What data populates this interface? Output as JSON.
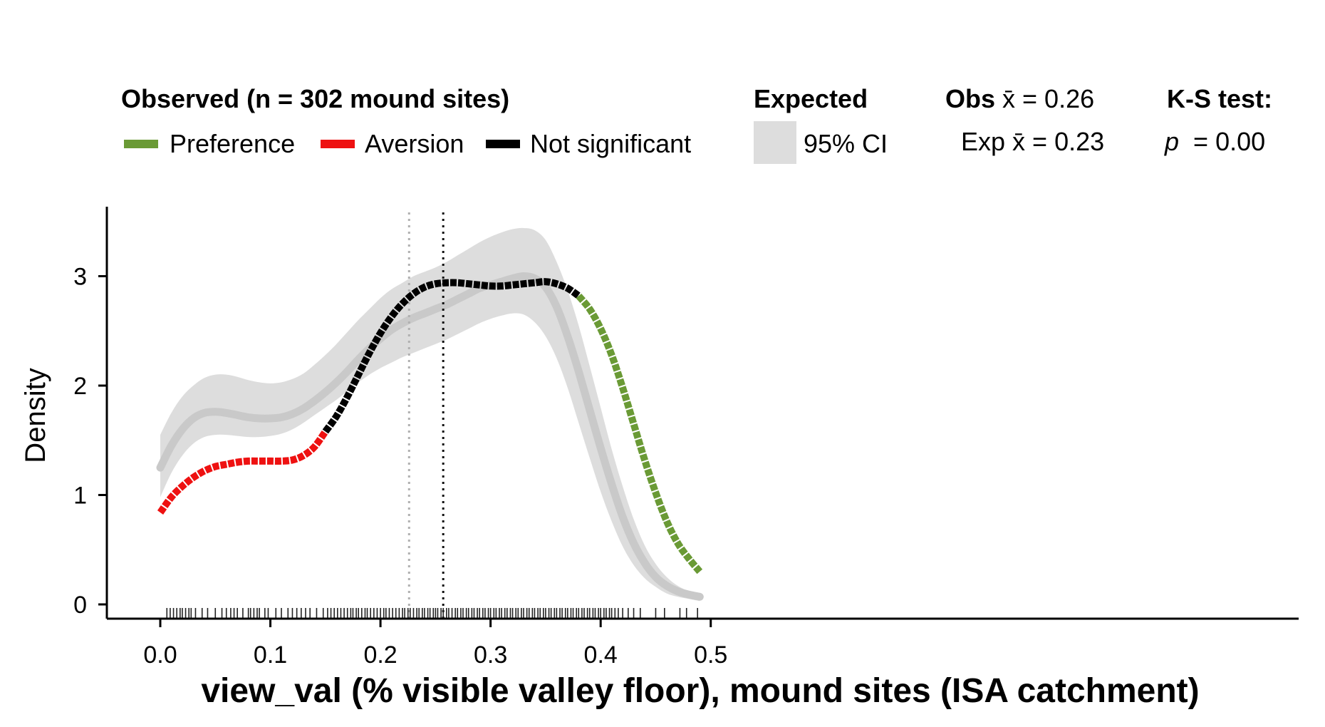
{
  "chart_data": {
    "type": "line",
    "xlabel": "view_val (% visible valley floor), mound sites (ISA catchment)",
    "ylabel": "Density",
    "xlim": [
      -0.025,
      0.515
    ],
    "ylim": [
      -0.13,
      3.6
    ],
    "x_ticks": [
      0.0,
      0.1,
      0.2,
      0.3,
      0.4,
      0.5
    ],
    "x_tick_labels": [
      "0.0",
      "0.1",
      "0.2",
      "0.3",
      "0.4",
      "0.5"
    ],
    "y_ticks": [
      0,
      1,
      2,
      3
    ],
    "y_tick_labels": [
      "0",
      "1",
      "2",
      "3"
    ],
    "legend": {
      "observed_title": "Observed (n = 302 mound sites)",
      "observed_items": [
        {
          "label": "Preference",
          "color": "#6a9a35"
        },
        {
          "label": "Aversion",
          "color": "#ee1111"
        },
        {
          "label": "Not significant",
          "color": "#000000"
        }
      ],
      "expected_title": "Expected",
      "expected_item": {
        "label": "95% CI",
        "color": "#dddddd"
      },
      "obs_mean_label": "Obs x̄ = 0.26",
      "exp_mean_label": "Exp x̄ = 0.23",
      "ks_title": "K-S test:",
      "ks_p_label": "p",
      "ks_p_value": "= 0.00"
    },
    "observed_density": {
      "x": [
        0.0,
        0.01,
        0.02,
        0.03,
        0.04,
        0.05,
        0.06,
        0.07,
        0.08,
        0.09,
        0.1,
        0.11,
        0.12,
        0.13,
        0.14,
        0.15,
        0.16,
        0.17,
        0.18,
        0.19,
        0.2,
        0.21,
        0.22,
        0.23,
        0.24,
        0.25,
        0.26,
        0.27,
        0.28,
        0.29,
        0.3,
        0.31,
        0.32,
        0.33,
        0.34,
        0.35,
        0.36,
        0.37,
        0.38,
        0.39,
        0.4,
        0.41,
        0.42,
        0.43,
        0.44,
        0.45,
        0.46,
        0.47,
        0.48,
        0.49
      ],
      "y": [
        0.84,
        0.98,
        1.08,
        1.16,
        1.22,
        1.26,
        1.28,
        1.3,
        1.31,
        1.31,
        1.31,
        1.31,
        1.32,
        1.36,
        1.44,
        1.58,
        1.72,
        1.9,
        2.1,
        2.3,
        2.48,
        2.63,
        2.75,
        2.84,
        2.9,
        2.93,
        2.94,
        2.94,
        2.93,
        2.92,
        2.91,
        2.91,
        2.92,
        2.93,
        2.94,
        2.95,
        2.93,
        2.89,
        2.82,
        2.7,
        2.52,
        2.28,
        1.98,
        1.65,
        1.32,
        1.02,
        0.76,
        0.56,
        0.42,
        0.3
      ],
      "color_segments": [
        {
          "status": "Aversion",
          "x_from": 0.0,
          "x_to": 0.15
        },
        {
          "status": "Not significant",
          "x_from": 0.15,
          "x_to": 0.38
        },
        {
          "status": "Preference",
          "x_from": 0.38,
          "x_to": 0.49
        }
      ]
    },
    "expected_density": {
      "x": [
        0.0,
        0.01,
        0.02,
        0.03,
        0.04,
        0.05,
        0.06,
        0.07,
        0.08,
        0.09,
        0.1,
        0.11,
        0.12,
        0.13,
        0.14,
        0.15,
        0.16,
        0.17,
        0.18,
        0.19,
        0.2,
        0.21,
        0.22,
        0.23,
        0.24,
        0.25,
        0.26,
        0.27,
        0.28,
        0.29,
        0.3,
        0.31,
        0.32,
        0.33,
        0.34,
        0.35,
        0.36,
        0.37,
        0.38,
        0.39,
        0.4,
        0.41,
        0.42,
        0.43,
        0.44,
        0.45,
        0.46,
        0.47,
        0.48,
        0.49
      ],
      "mean": [
        1.25,
        1.45,
        1.6,
        1.7,
        1.75,
        1.76,
        1.75,
        1.73,
        1.71,
        1.7,
        1.7,
        1.71,
        1.74,
        1.79,
        1.86,
        1.94,
        2.03,
        2.13,
        2.24,
        2.34,
        2.43,
        2.51,
        2.57,
        2.62,
        2.66,
        2.7,
        2.74,
        2.79,
        2.84,
        2.89,
        2.92,
        2.95,
        2.98,
        3.0,
        2.98,
        2.9,
        2.72,
        2.45,
        2.13,
        1.78,
        1.43,
        1.1,
        0.8,
        0.56,
        0.38,
        0.25,
        0.17,
        0.12,
        0.09,
        0.07
      ],
      "lower": [
        0.98,
        1.2,
        1.36,
        1.47,
        1.53,
        1.55,
        1.55,
        1.54,
        1.53,
        1.53,
        1.54,
        1.56,
        1.6,
        1.66,
        1.73,
        1.8,
        1.87,
        1.95,
        2.03,
        2.1,
        2.16,
        2.21,
        2.26,
        2.3,
        2.34,
        2.38,
        2.42,
        2.47,
        2.52,
        2.57,
        2.61,
        2.64,
        2.66,
        2.65,
        2.58,
        2.45,
        2.25,
        1.98,
        1.66,
        1.34,
        1.03,
        0.76,
        0.53,
        0.36,
        0.24,
        0.16,
        0.1,
        0.07,
        0.05,
        0.03
      ],
      "upper": [
        1.55,
        1.75,
        1.9,
        2.0,
        2.07,
        2.1,
        2.1,
        2.08,
        2.05,
        2.03,
        2.02,
        2.03,
        2.06,
        2.11,
        2.19,
        2.28,
        2.38,
        2.49,
        2.6,
        2.7,
        2.8,
        2.88,
        2.94,
        3.0,
        3.04,
        3.08,
        3.13,
        3.19,
        3.25,
        3.31,
        3.36,
        3.4,
        3.43,
        3.44,
        3.42,
        3.33,
        3.13,
        2.87,
        2.55,
        2.18,
        1.8,
        1.42,
        1.08,
        0.78,
        0.54,
        0.37,
        0.25,
        0.17,
        0.12,
        0.09
      ]
    },
    "vlines": [
      {
        "label": "Exp mean",
        "x": 0.226,
        "style": "dotted",
        "color": "#b0b0b0"
      },
      {
        "label": "Obs mean",
        "x": 0.257,
        "style": "dotted",
        "color": "#111111"
      }
    ],
    "rug_x": [
      0.006,
      0.009,
      0.012,
      0.015,
      0.018,
      0.02,
      0.023,
      0.026,
      0.028,
      0.032,
      0.038,
      0.043,
      0.05,
      0.056,
      0.06,
      0.064,
      0.067,
      0.07,
      0.075,
      0.08,
      0.082,
      0.085,
      0.088,
      0.09,
      0.095,
      0.098,
      0.105,
      0.11,
      0.116,
      0.12,
      0.124,
      0.128,
      0.132,
      0.136,
      0.142,
      0.148,
      0.152,
      0.155,
      0.158,
      0.161,
      0.164,
      0.167,
      0.17,
      0.173,
      0.175,
      0.178,
      0.18,
      0.183,
      0.186,
      0.188,
      0.191,
      0.194,
      0.197,
      0.2,
      0.203,
      0.205,
      0.208,
      0.211,
      0.214,
      0.217,
      0.22,
      0.222,
      0.225,
      0.227,
      0.23,
      0.233,
      0.235,
      0.238,
      0.24,
      0.243,
      0.245,
      0.248,
      0.25,
      0.252,
      0.255,
      0.257,
      0.26,
      0.262,
      0.265,
      0.268,
      0.27,
      0.273,
      0.275,
      0.278,
      0.28,
      0.283,
      0.285,
      0.288,
      0.29,
      0.293,
      0.295,
      0.298,
      0.3,
      0.303,
      0.305,
      0.308,
      0.31,
      0.313,
      0.315,
      0.318,
      0.32,
      0.323,
      0.325,
      0.328,
      0.33,
      0.333,
      0.335,
      0.338,
      0.34,
      0.343,
      0.345,
      0.348,
      0.35,
      0.353,
      0.355,
      0.358,
      0.36,
      0.363,
      0.365,
      0.368,
      0.37,
      0.373,
      0.375,
      0.378,
      0.38,
      0.383,
      0.385,
      0.388,
      0.39,
      0.393,
      0.395,
      0.398,
      0.4,
      0.403,
      0.405,
      0.408,
      0.41,
      0.413,
      0.416,
      0.42,
      0.425,
      0.43,
      0.436,
      0.45,
      0.458,
      0.472,
      0.478,
      0.488
    ]
  }
}
